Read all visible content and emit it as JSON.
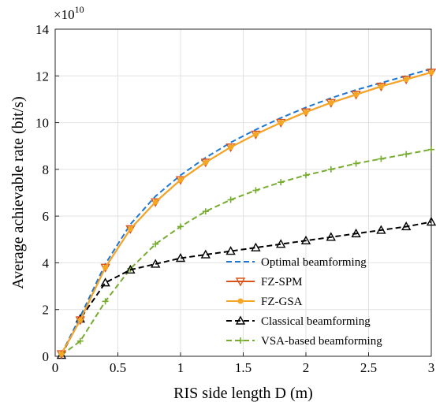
{
  "chart_data": {
    "type": "line",
    "title": "",
    "xlabel": "RIS side length D (m)",
    "ylabel": "Average achievable rate (bit/s)",
    "y_multiplier": "×10",
    "y_multiplier_exponent": "10",
    "xlim": [
      0,
      3
    ],
    "ylim": [
      0,
      14
    ],
    "xticks": [
      0,
      0.5,
      1,
      1.5,
      2,
      2.5,
      3
    ],
    "xtick_labels": [
      "0",
      "0.5",
      "1",
      "1.5",
      "2",
      "2.5",
      "3"
    ],
    "yticks": [
      0,
      2,
      4,
      6,
      8,
      10,
      12,
      14
    ],
    "ytick_labels": [
      "0",
      "2",
      "4",
      "6",
      "8",
      "10",
      "12",
      "14"
    ],
    "grid": true,
    "legend_position": "bottom-right",
    "series": [
      {
        "name": "Optimal beamforming",
        "color": "#1f77d4",
        "dash": "dashed",
        "marker": "none",
        "x": [
          0.05,
          0.2,
          0.4,
          0.6,
          0.8,
          1.0,
          1.2,
          1.4,
          1.6,
          1.8,
          2.0,
          2.2,
          2.4,
          2.6,
          2.8,
          3.0
        ],
        "y": [
          0.1,
          1.7,
          3.95,
          5.65,
          6.85,
          7.75,
          8.5,
          9.15,
          9.7,
          10.2,
          10.65,
          11.05,
          11.4,
          11.7,
          12.0,
          12.3
        ]
      },
      {
        "name": "FZ-SPM",
        "color": "#d95319",
        "dash": "solid",
        "marker": "triangle-down",
        "x": [
          0.05,
          0.2,
          0.4,
          0.6,
          0.8,
          1.0,
          1.2,
          1.4,
          1.6,
          1.8,
          2.0,
          2.2,
          2.4,
          2.6,
          2.8,
          3.0
        ],
        "y": [
          0.1,
          1.55,
          3.8,
          5.45,
          6.6,
          7.55,
          8.3,
          8.95,
          9.5,
          10.0,
          10.45,
          10.85,
          11.2,
          11.55,
          11.85,
          12.15
        ]
      },
      {
        "name": "FZ-GSA",
        "color": "#f5a623",
        "dash": "solid",
        "marker": "dot",
        "x": [
          0.05,
          0.2,
          0.4,
          0.6,
          0.8,
          1.0,
          1.2,
          1.4,
          1.6,
          1.8,
          2.0,
          2.2,
          2.4,
          2.6,
          2.8,
          3.0
        ],
        "y": [
          0.1,
          1.55,
          3.8,
          5.45,
          6.6,
          7.55,
          8.3,
          8.95,
          9.5,
          10.0,
          10.45,
          10.85,
          11.2,
          11.55,
          11.85,
          12.15
        ]
      },
      {
        "name": "Classical beamforming",
        "color": "#000000",
        "dash": "dashed",
        "marker": "triangle-up",
        "x": [
          0.05,
          0.2,
          0.4,
          0.6,
          0.8,
          1.0,
          1.2,
          1.4,
          1.6,
          1.8,
          2.0,
          2.2,
          2.4,
          2.6,
          2.8,
          3.0
        ],
        "y": [
          0.05,
          1.6,
          3.15,
          3.7,
          3.95,
          4.2,
          4.35,
          4.5,
          4.65,
          4.8,
          4.95,
          5.1,
          5.25,
          5.4,
          5.55,
          5.75
        ]
      },
      {
        "name": "VSA-based beamforming",
        "color": "#77ac30",
        "dash": "dashed",
        "marker": "plus",
        "x": [
          0.05,
          0.2,
          0.4,
          0.6,
          0.8,
          1.0,
          1.2,
          1.4,
          1.6,
          1.8,
          2.0,
          2.2,
          2.4,
          2.6,
          2.8,
          3.0
        ],
        "y": [
          0.05,
          0.65,
          2.35,
          3.75,
          4.8,
          5.55,
          6.2,
          6.7,
          7.1,
          7.45,
          7.75,
          8.0,
          8.25,
          8.45,
          8.65,
          8.85
        ]
      }
    ]
  }
}
